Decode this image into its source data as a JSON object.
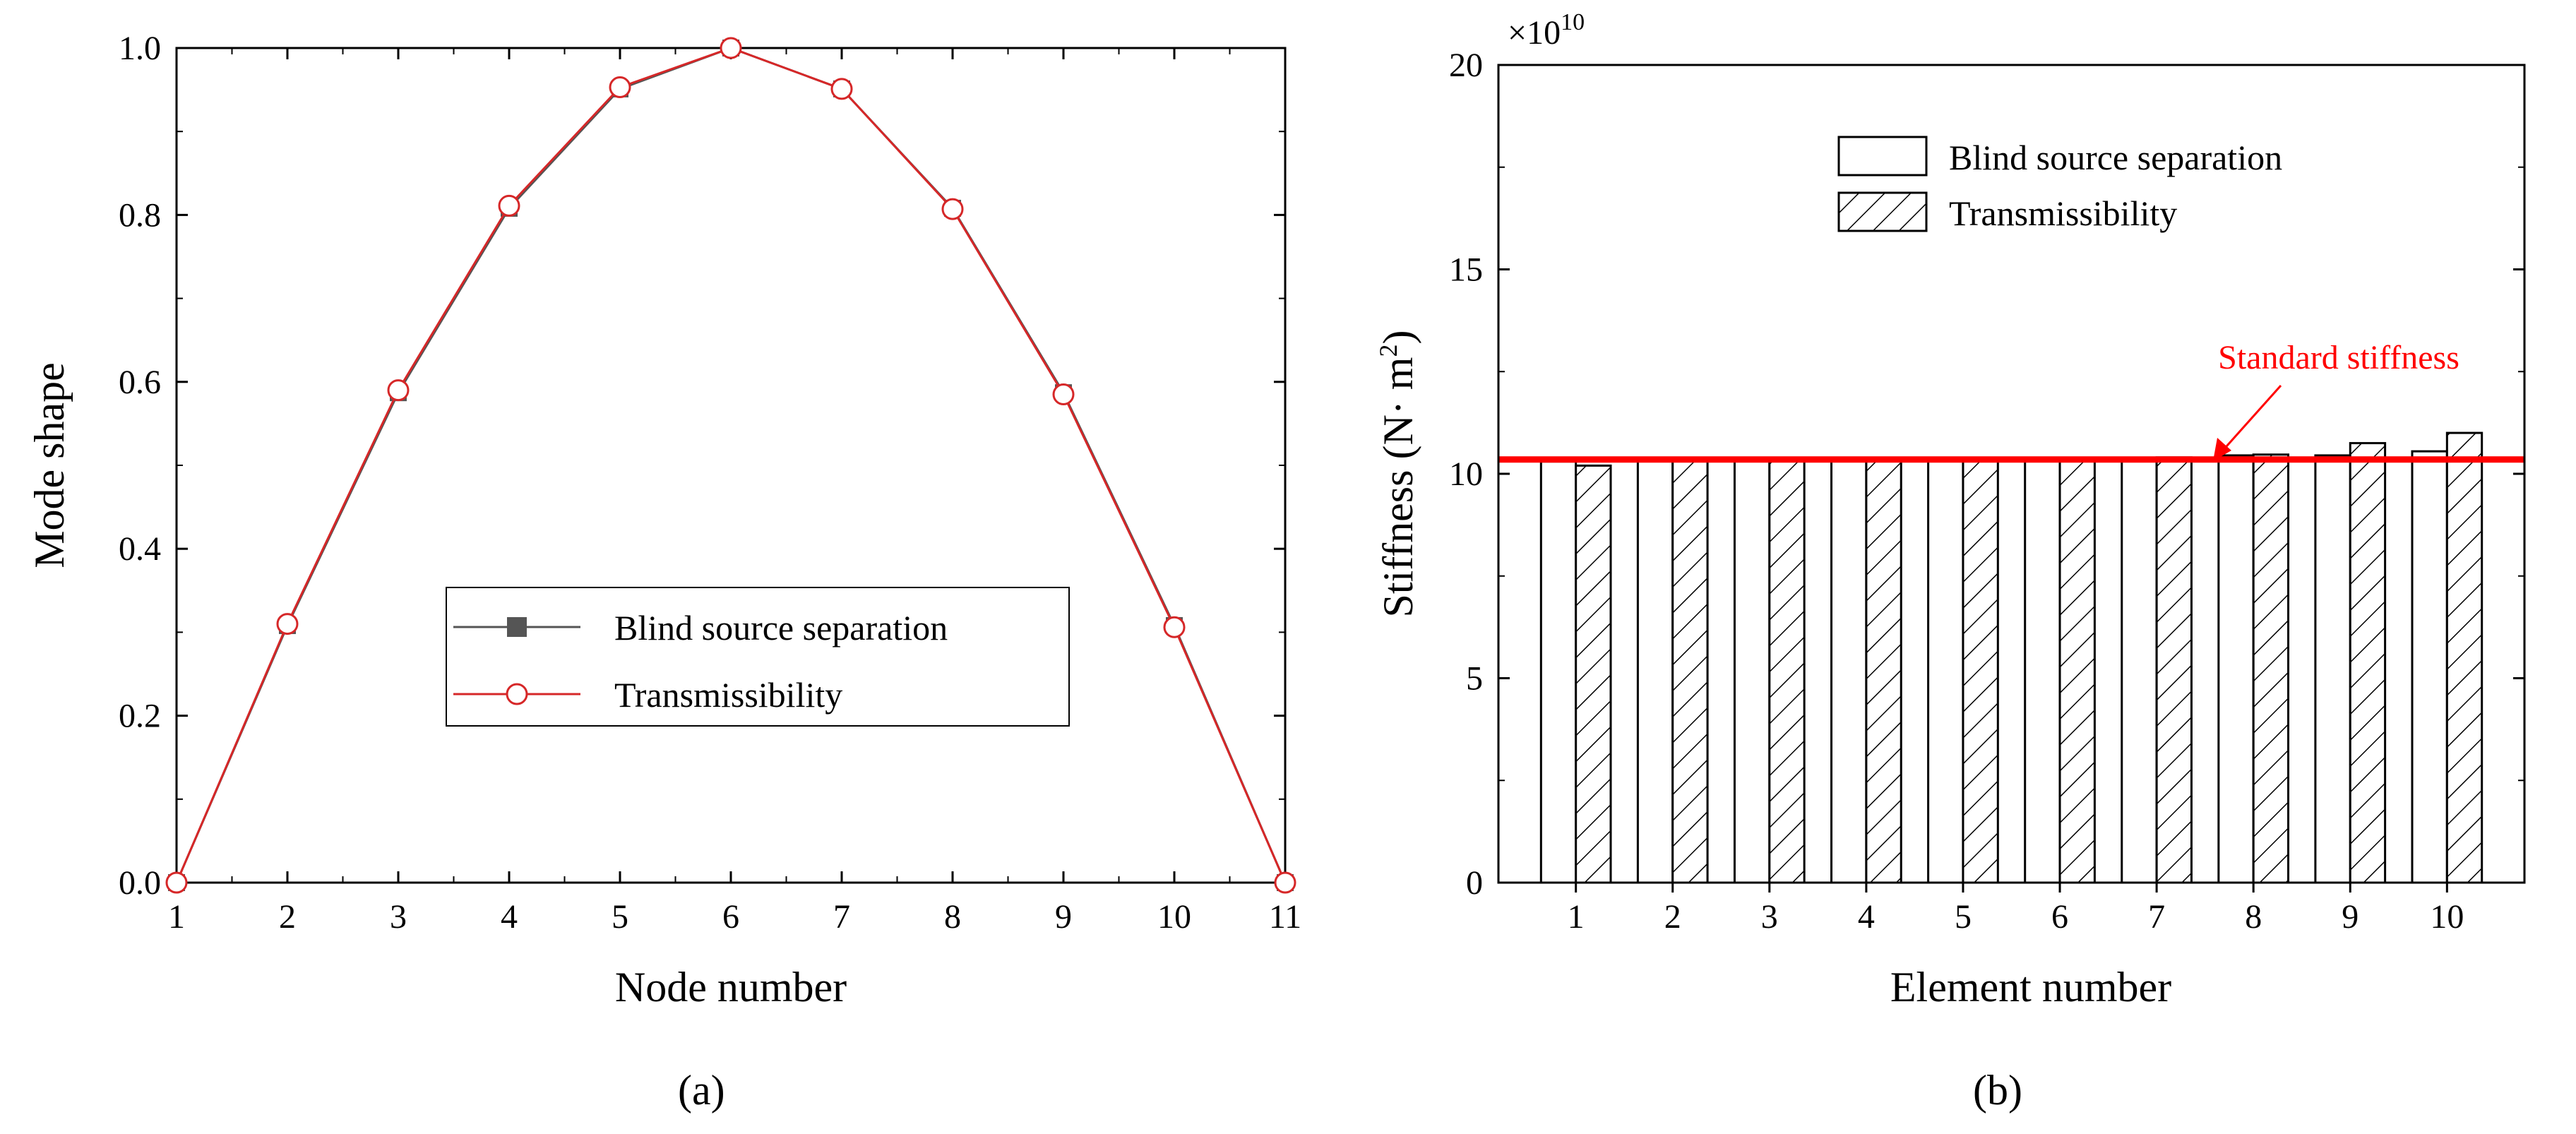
{
  "figure": {
    "panel_a_label": "(a)",
    "panel_b_label": "(b)"
  },
  "colors": {
    "bss_line": "#555555",
    "trans_line": "#d62728",
    "standard_line": "#ff0000",
    "annotation": "#ff0000"
  },
  "chart_data": [
    {
      "type": "line",
      "xlabel": "Node number",
      "ylabel": "Mode shape",
      "xlim": [
        1,
        11
      ],
      "ylim": [
        0,
        1
      ],
      "x": [
        1,
        2,
        3,
        4,
        5,
        6,
        7,
        8,
        9,
        10,
        11
      ],
      "xticks": [
        "1",
        "2",
        "3",
        "4",
        "5",
        "6",
        "7",
        "8",
        "9",
        "10",
        "11"
      ],
      "yticks": [
        "0.0",
        "0.2",
        "0.4",
        "0.6",
        "0.8",
        "1.0"
      ],
      "ytick_values": [
        0,
        0.2,
        0.4,
        0.6,
        0.8,
        1.0
      ],
      "legend_position": "center-right",
      "series": [
        {
          "name": "Blind source separation",
          "marker": "square",
          "values": [
            0,
            0.308,
            0.587,
            0.808,
            0.951,
            1.0,
            0.951,
            0.808,
            0.587,
            0.308,
            0
          ]
        },
        {
          "name": "Transmissibility",
          "marker": "circle",
          "values": [
            0,
            0.31,
            0.59,
            0.811,
            0.953,
            1.0,
            0.951,
            0.807,
            0.585,
            0.306,
            0
          ]
        }
      ]
    },
    {
      "type": "bar",
      "xlabel": "Element number",
      "ylabel_main": "Stiffness",
      "ylabel_unit_open": " (N",
      "ylabel_unit_mid": "· m",
      "ylabel_unit_sup": "2",
      "ylabel_unit_close": ")",
      "yscale_base": "×10",
      "yscale_exp": "10",
      "ylim": [
        0,
        20
      ],
      "yticks": [
        "0",
        "5",
        "10",
        "15",
        "20"
      ],
      "ytick_values": [
        0,
        5,
        10,
        15,
        20
      ],
      "categories": [
        "1",
        "2",
        "3",
        "4",
        "5",
        "6",
        "7",
        "8",
        "9",
        "10"
      ],
      "legend_position": "top-right",
      "series": [
        {
          "name": "Blind source separation",
          "fill": "empty",
          "values": [
            10.3,
            10.32,
            10.33,
            10.34,
            10.33,
            10.34,
            10.36,
            10.45,
            10.45,
            10.55
          ]
        },
        {
          "name": "Transmissibility",
          "fill": "hatched",
          "values": [
            10.2,
            10.34,
            10.33,
            10.34,
            10.33,
            10.34,
            10.4,
            10.47,
            10.75,
            11.0
          ]
        }
      ],
      "reference_line": {
        "label": "Standard stiffness",
        "value": 10.35
      }
    }
  ]
}
